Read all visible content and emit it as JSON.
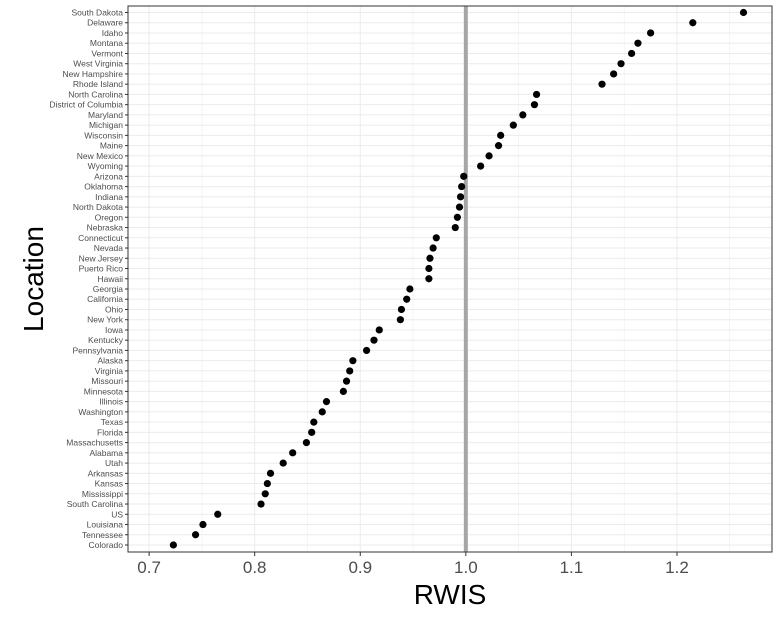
{
  "chart_data": {
    "type": "scatter",
    "xlabel": "RWIS",
    "ylabel": "Location",
    "xlim": [
      0.68,
      1.29
    ],
    "x_ticks": [
      0.7,
      0.8,
      0.9,
      1.0,
      1.1,
      1.2
    ],
    "x_tick_labels": [
      "0.7",
      "0.8",
      "0.9",
      "1.0",
      "1.1",
      "1.2"
    ],
    "reference_line": 1.0,
    "grid": true,
    "colors": {
      "points": "#000000",
      "reference_line": "#a6a6a6",
      "grid": "#ebebeb",
      "panel_border": "#333333"
    },
    "points": [
      {
        "location": "Colorado",
        "value": 0.723
      },
      {
        "location": "Tennessee",
        "value": 0.744
      },
      {
        "location": "Louisiana",
        "value": 0.751
      },
      {
        "location": "US",
        "value": 0.765
      },
      {
        "location": "South Carolina",
        "value": 0.806
      },
      {
        "location": "Mississippi",
        "value": 0.81
      },
      {
        "location": "Kansas",
        "value": 0.812
      },
      {
        "location": "Arkansas",
        "value": 0.815
      },
      {
        "location": "Utah",
        "value": 0.827
      },
      {
        "location": "Alabama",
        "value": 0.836
      },
      {
        "location": "Massachusetts",
        "value": 0.849
      },
      {
        "location": "Florida",
        "value": 0.854
      },
      {
        "location": "Texas",
        "value": 0.856
      },
      {
        "location": "Washington",
        "value": 0.864
      },
      {
        "location": "Illinois",
        "value": 0.868
      },
      {
        "location": "Minnesota",
        "value": 0.884
      },
      {
        "location": "Missouri",
        "value": 0.887
      },
      {
        "location": "Virginia",
        "value": 0.89
      },
      {
        "location": "Alaska",
        "value": 0.893
      },
      {
        "location": "Pennsylvania",
        "value": 0.906
      },
      {
        "location": "Kentucky",
        "value": 0.913
      },
      {
        "location": "Iowa",
        "value": 0.918
      },
      {
        "location": "New York",
        "value": 0.938
      },
      {
        "location": "Ohio",
        "value": 0.939
      },
      {
        "location": "California",
        "value": 0.944
      },
      {
        "location": "Georgia",
        "value": 0.947
      },
      {
        "location": "Hawaii",
        "value": 0.965
      },
      {
        "location": "Puerto Rico",
        "value": 0.965
      },
      {
        "location": "New Jersey",
        "value": 0.966
      },
      {
        "location": "Nevada",
        "value": 0.969
      },
      {
        "location": "Connecticut",
        "value": 0.972
      },
      {
        "location": "Nebraska",
        "value": 0.99
      },
      {
        "location": "Oregon",
        "value": 0.992
      },
      {
        "location": "North Dakota",
        "value": 0.994
      },
      {
        "location": "Indiana",
        "value": 0.995
      },
      {
        "location": "Oklahoma",
        "value": 0.996
      },
      {
        "location": "Arizona",
        "value": 0.998
      },
      {
        "location": "Wyoming",
        "value": 1.014
      },
      {
        "location": "New Mexico",
        "value": 1.022
      },
      {
        "location": "Maine",
        "value": 1.031
      },
      {
        "location": "Wisconsin",
        "value": 1.033
      },
      {
        "location": "Michigan",
        "value": 1.045
      },
      {
        "location": "Maryland",
        "value": 1.054
      },
      {
        "location": "District of Columbia",
        "value": 1.065
      },
      {
        "location": "North Carolina",
        "value": 1.067
      },
      {
        "location": "Rhode Island",
        "value": 1.129
      },
      {
        "location": "New Hampshire",
        "value": 1.14
      },
      {
        "location": "West Virginia",
        "value": 1.147
      },
      {
        "location": "Vermont",
        "value": 1.157
      },
      {
        "location": "Montana",
        "value": 1.163
      },
      {
        "location": "Idaho",
        "value": 1.175
      },
      {
        "location": "Delaware",
        "value": 1.215
      },
      {
        "location": "South Dakota",
        "value": 1.263
      }
    ]
  }
}
